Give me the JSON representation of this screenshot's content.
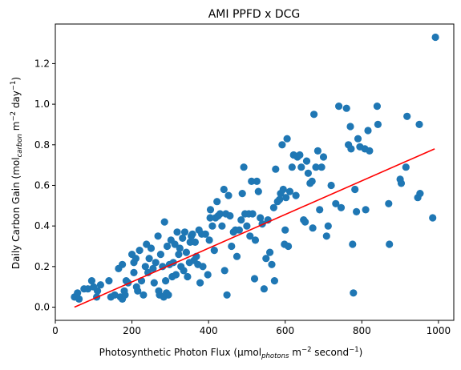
{
  "chart_data": {
    "type": "scatter",
    "title": "AMI PPFD x DCG",
    "xlabel": {
      "text": "Photosynthetic Photon Flux (µmol",
      "sub": "photons",
      "rest": " m",
      "sup1": "−2",
      "rest2": " second",
      "sup2": "−1",
      "end": ")"
    },
    "ylabel": {
      "text": "Daily Carbon Gain (mol",
      "sub": "carbon",
      "rest": " m",
      "sup1": "−2",
      "rest2": " day",
      "sup2": "−1",
      "end": ")"
    },
    "xlim": [
      0,
      1040
    ],
    "ylim": [
      -0.065,
      1.395
    ],
    "xticks": [
      0,
      200,
      400,
      600,
      800,
      1000
    ],
    "yticks": [
      0.0,
      0.2,
      0.4,
      0.6,
      0.8,
      1.0,
      1.2
    ],
    "xtick_labels": [
      "0",
      "200",
      "400",
      "600",
      "800",
      "1000"
    ],
    "ytick_labels": [
      "0.0",
      "0.2",
      "0.4",
      "0.6",
      "0.8",
      "1.0",
      "1.2"
    ],
    "grid": false,
    "colors": {
      "points": "#1f77b4",
      "fit": "#ff0000"
    },
    "points": [
      [
        50,
        0.05
      ],
      [
        58,
        0.07
      ],
      [
        62,
        0.04
      ],
      [
        75,
        0.09
      ],
      [
        85,
        0.09
      ],
      [
        95,
        0.13
      ],
      [
        100,
        0.1
      ],
      [
        108,
        0.05
      ],
      [
        110,
        0.08
      ],
      [
        118,
        0.11
      ],
      [
        140,
        0.13
      ],
      [
        145,
        0.05
      ],
      [
        155,
        0.06
      ],
      [
        165,
        0.19
      ],
      [
        170,
        0.05
      ],
      [
        175,
        0.04
      ],
      [
        175,
        0.21
      ],
      [
        180,
        0.08
      ],
      [
        182,
        0.06
      ],
      [
        185,
        0.13
      ],
      [
        190,
        0.12
      ],
      [
        200,
        0.26
      ],
      [
        205,
        0.17
      ],
      [
        205,
        0.22
      ],
      [
        210,
        0.24
      ],
      [
        212,
        0.1
      ],
      [
        215,
        0.08
      ],
      [
        220,
        0.28
      ],
      [
        225,
        0.13
      ],
      [
        230,
        0.06
      ],
      [
        235,
        0.2
      ],
      [
        238,
        0.31
      ],
      [
        242,
        0.17
      ],
      [
        245,
        0.24
      ],
      [
        250,
        0.29
      ],
      [
        255,
        0.19
      ],
      [
        258,
        0.12
      ],
      [
        262,
        0.22
      ],
      [
        268,
        0.35
      ],
      [
        270,
        0.08
      ],
      [
        272,
        0.06
      ],
      [
        275,
        0.26
      ],
      [
        280,
        0.2
      ],
      [
        283,
        0.05
      ],
      [
        285,
        0.42
      ],
      [
        288,
        0.13
      ],
      [
        290,
        0.07
      ],
      [
        292,
        0.3
      ],
      [
        295,
        0.06
      ],
      [
        298,
        0.21
      ],
      [
        302,
        0.33
      ],
      [
        305,
        0.15
      ],
      [
        308,
        0.22
      ],
      [
        312,
        0.31
      ],
      [
        315,
        0.16
      ],
      [
        318,
        0.37
      ],
      [
        322,
        0.26
      ],
      [
        325,
        0.29
      ],
      [
        328,
        0.2
      ],
      [
        332,
        0.34
      ],
      [
        335,
        0.18
      ],
      [
        338,
        0.37
      ],
      [
        342,
        0.27
      ],
      [
        345,
        0.15
      ],
      [
        350,
        0.22
      ],
      [
        352,
        0.32
      ],
      [
        355,
        0.35
      ],
      [
        358,
        0.36
      ],
      [
        362,
        0.23
      ],
      [
        365,
        0.32
      ],
      [
        368,
        0.25
      ],
      [
        372,
        0.21
      ],
      [
        375,
        0.38
      ],
      [
        378,
        0.12
      ],
      [
        382,
        0.36
      ],
      [
        385,
        0.2
      ],
      [
        392,
        0.36
      ],
      [
        398,
        0.16
      ],
      [
        402,
        0.33
      ],
      [
        404,
        0.44
      ],
      [
        405,
        0.48
      ],
      [
        410,
        0.4
      ],
      [
        415,
        0.28
      ],
      [
        418,
        0.44
      ],
      [
        422,
        0.52
      ],
      [
        425,
        0.45
      ],
      [
        430,
        0.46
      ],
      [
        435,
        0.4
      ],
      [
        440,
        0.58
      ],
      [
        442,
        0.18
      ],
      [
        445,
        0.46
      ],
      [
        448,
        0.06
      ],
      [
        452,
        0.55
      ],
      [
        456,
        0.45
      ],
      [
        460,
        0.3
      ],
      [
        465,
        0.37
      ],
      [
        470,
        0.38
      ],
      [
        474,
        0.25
      ],
      [
        480,
        0.38
      ],
      [
        485,
        0.43
      ],
      [
        488,
        0.56
      ],
      [
        492,
        0.69
      ],
      [
        495,
        0.46
      ],
      [
        500,
        0.4
      ],
      [
        505,
        0.46
      ],
      [
        508,
        0.35
      ],
      [
        512,
        0.62
      ],
      [
        515,
        0.46
      ],
      [
        520,
        0.14
      ],
      [
        522,
        0.33
      ],
      [
        526,
        0.62
      ],
      [
        530,
        0.57
      ],
      [
        535,
        0.44
      ],
      [
        540,
        0.41
      ],
      [
        545,
        0.09
      ],
      [
        550,
        0.24
      ],
      [
        555,
        0.43
      ],
      [
        560,
        0.27
      ],
      [
        565,
        0.21
      ],
      [
        570,
        0.49
      ],
      [
        572,
        0.13
      ],
      [
        575,
        0.68
      ],
      [
        580,
        0.52
      ],
      [
        585,
        0.53
      ],
      [
        588,
        0.56
      ],
      [
        592,
        0.8
      ],
      [
        595,
        0.58
      ],
      [
        598,
        0.31
      ],
      [
        600,
        0.38
      ],
      [
        602,
        0.54
      ],
      [
        605,
        0.83
      ],
      [
        608,
        0.3
      ],
      [
        612,
        0.57
      ],
      [
        618,
        0.69
      ],
      [
        622,
        0.75
      ],
      [
        628,
        0.55
      ],
      [
        632,
        0.74
      ],
      [
        638,
        0.75
      ],
      [
        642,
        0.69
      ],
      [
        648,
        0.43
      ],
      [
        652,
        0.42
      ],
      [
        656,
        0.72
      ],
      [
        660,
        0.66
      ],
      [
        665,
        0.61
      ],
      [
        670,
        0.62
      ],
      [
        672,
        0.39
      ],
      [
        675,
        0.95
      ],
      [
        680,
        0.69
      ],
      [
        685,
        0.77
      ],
      [
        690,
        0.48
      ],
      [
        695,
        0.69
      ],
      [
        700,
        0.74
      ],
      [
        708,
        0.35
      ],
      [
        712,
        0.4
      ],
      [
        720,
        0.6
      ],
      [
        732,
        0.51
      ],
      [
        740,
        0.99
      ],
      [
        746,
        0.49
      ],
      [
        760,
        0.98
      ],
      [
        765,
        0.8
      ],
      [
        770,
        0.89
      ],
      [
        772,
        0.78
      ],
      [
        776,
        0.31
      ],
      [
        778,
        0.07
      ],
      [
        782,
        0.58
      ],
      [
        786,
        0.47
      ],
      [
        790,
        0.83
      ],
      [
        795,
        0.79
      ],
      [
        808,
        0.78
      ],
      [
        810,
        0.48
      ],
      [
        816,
        0.87
      ],
      [
        820,
        0.77
      ],
      [
        840,
        0.99
      ],
      [
        842,
        0.9
      ],
      [
        870,
        0.51
      ],
      [
        872,
        0.31
      ],
      [
        900,
        0.63
      ],
      [
        903,
        0.61
      ],
      [
        915,
        0.69
      ],
      [
        918,
        0.94
      ],
      [
        946,
        0.54
      ],
      [
        950,
        0.9
      ],
      [
        952,
        0.56
      ],
      [
        985,
        0.44
      ],
      [
        992,
        1.33
      ]
    ],
    "fit_line": {
      "x": [
        50,
        990
      ],
      "y": [
        0.0,
        0.78
      ]
    }
  }
}
